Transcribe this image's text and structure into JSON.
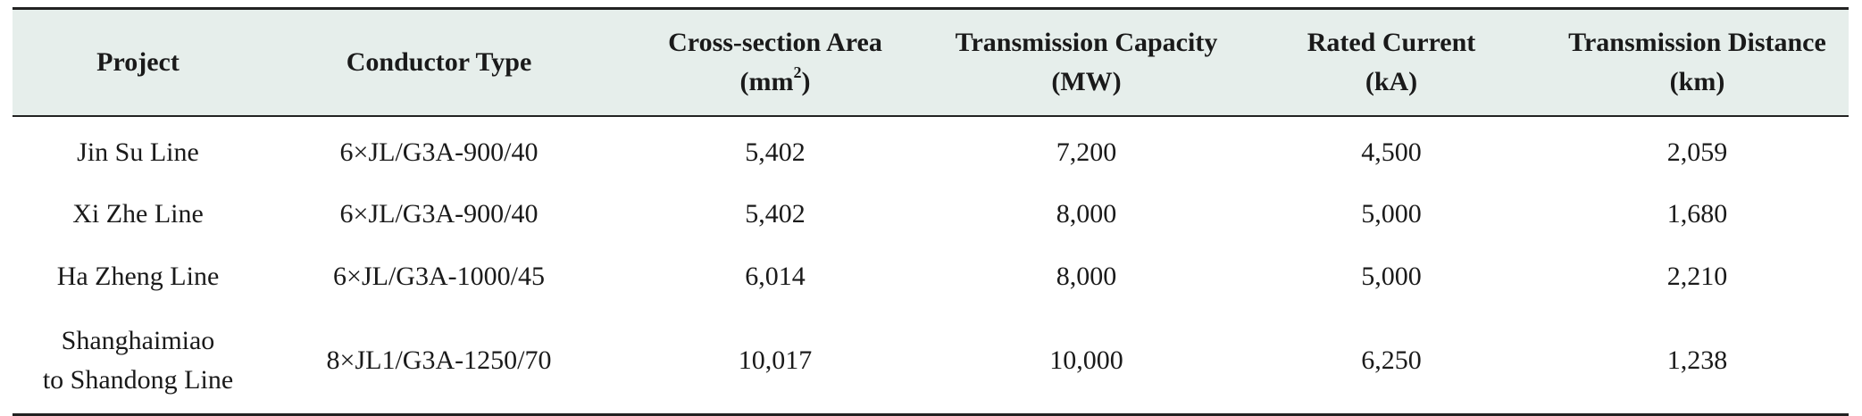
{
  "table": {
    "headers": [
      {
        "line1": "Project",
        "line2": ""
      },
      {
        "line1": "Conductor Type",
        "line2": ""
      },
      {
        "line1": "Cross-section Area",
        "line2_pre": "(mm",
        "line2_sup": "2",
        "line2_post": ")"
      },
      {
        "line1": "Transmission Capacity",
        "line2": "(MW)"
      },
      {
        "line1": "Rated Current",
        "line2": "(kA)"
      },
      {
        "line1": "Transmission Distance",
        "line2": "(km)"
      }
    ],
    "rows": [
      {
        "project": "Jin Su Line",
        "conductor": "6×JL/G3A-900/40",
        "area": "5,402",
        "capacity": "7,200",
        "current": "4,500",
        "distance": "2,059"
      },
      {
        "project": "Xi Zhe Line",
        "conductor": "6×JL/G3A-900/40",
        "area": "5,402",
        "capacity": "8,000",
        "current": "5,000",
        "distance": "1,680"
      },
      {
        "project": "Ha Zheng Line",
        "conductor": "6×JL/G3A-1000/45",
        "area": "6,014",
        "capacity": "8,000",
        "current": "5,000",
        "distance": "2,210"
      },
      {
        "project_line1": "Shanghaimiao",
        "project_line2": "to Shandong Line",
        "conductor": "8×JL1/G3A-1250/70",
        "area": "10,017",
        "capacity": "10,000",
        "current": "6,250",
        "distance": "1,238"
      }
    ]
  }
}
